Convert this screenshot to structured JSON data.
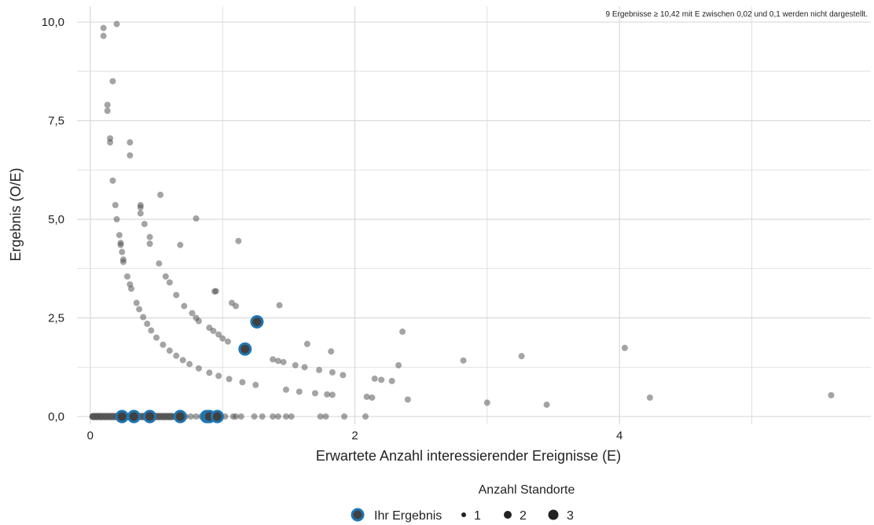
{
  "chart_data": {
    "type": "scatter",
    "title": "",
    "xlabel": "Erwartete Anzahl interessierender Ereignisse (E)",
    "ylabel": "Ergebnis (O/E)",
    "xlim": [
      -0.1,
      5.9
    ],
    "ylim": [
      -0.2,
      10.4
    ],
    "x_ticks": [
      {
        "value": 0,
        "label": "0"
      },
      {
        "value": 2,
        "label": "2"
      },
      {
        "value": 4,
        "label": "4"
      }
    ],
    "x_minor_grid": [
      1,
      3,
      5
    ],
    "y_ticks": [
      {
        "value": 0,
        "label": "0,0"
      },
      {
        "value": 2.5,
        "label": "2,5"
      },
      {
        "value": 5,
        "label": "5,0"
      },
      {
        "value": 7.5,
        "label": "7,5"
      },
      {
        "value": 10,
        "label": "10,0"
      }
    ],
    "y_minor_grid": [
      1.25,
      3.75,
      6.25,
      8.75
    ],
    "grid": true,
    "annotation": "9 Ergebnisse ≥ 10,42 mit E zwischen 0,02 und 0,1 werden nicht dargestellt.",
    "colors": {
      "points": "#4a4a4a",
      "highlight_fill": "#404040",
      "highlight_ring": "#1f77b4",
      "grid": "#d9d9d9"
    },
    "series": [
      {
        "name": "Standorte",
        "points": [
          [
            0.1,
            9.85
          ],
          [
            0.2,
            9.95
          ],
          [
            0.1,
            9.65
          ],
          [
            0.17,
            8.5
          ],
          [
            0.13,
            7.9
          ],
          [
            0.13,
            7.75
          ],
          [
            0.15,
            7.05
          ],
          [
            0.15,
            6.95
          ],
          [
            0.3,
            6.95
          ],
          [
            0.3,
            6.62
          ],
          [
            0.17,
            5.98
          ],
          [
            0.53,
            5.62
          ],
          [
            0.19,
            5.36
          ],
          [
            0.38,
            5.36
          ],
          [
            0.38,
            5.3
          ],
          [
            0.38,
            5.15
          ],
          [
            0.41,
            4.88
          ],
          [
            0.8,
            5.02
          ],
          [
            0.2,
            5.0
          ],
          [
            0.22,
            4.6
          ],
          [
            0.23,
            4.4
          ],
          [
            0.23,
            4.35
          ],
          [
            0.24,
            4.17
          ],
          [
            0.25,
            3.98
          ],
          [
            0.25,
            3.92
          ],
          [
            0.45,
            4.55
          ],
          [
            0.45,
            4.38
          ],
          [
            0.68,
            4.35
          ],
          [
            1.12,
            4.45
          ],
          [
            0.52,
            3.88
          ],
          [
            0.57,
            3.55
          ],
          [
            0.6,
            3.4
          ],
          [
            0.65,
            3.08
          ],
          [
            0.71,
            2.8
          ],
          [
            0.77,
            2.62
          ],
          [
            0.8,
            2.5
          ],
          [
            0.82,
            2.42
          ],
          [
            0.9,
            2.25
          ],
          [
            0.93,
            2.17
          ],
          [
            0.97,
            2.08
          ],
          [
            1.0,
            1.98
          ],
          [
            1.04,
            1.9
          ],
          [
            1.1,
            2.8
          ],
          [
            1.07,
            2.88
          ],
          [
            0.95,
            3.18
          ],
          [
            0.94,
            3.17
          ],
          [
            1.43,
            2.82
          ],
          [
            1.38,
            1.45
          ],
          [
            1.42,
            1.41
          ],
          [
            1.46,
            1.38
          ],
          [
            1.55,
            1.3
          ],
          [
            1.62,
            1.25
          ],
          [
            1.64,
            1.84
          ],
          [
            1.73,
            1.18
          ],
          [
            1.83,
            1.12
          ],
          [
            1.91,
            1.05
          ],
          [
            1.82,
            1.65
          ],
          [
            2.09,
            0.5
          ],
          [
            2.13,
            0.48
          ],
          [
            2.15,
            0.96
          ],
          [
            2.2,
            0.93
          ],
          [
            2.28,
            0.9
          ],
          [
            2.33,
            1.3
          ],
          [
            2.36,
            2.15
          ],
          [
            2.4,
            0.43
          ],
          [
            2.82,
            1.42
          ],
          [
            3.0,
            0.35
          ],
          [
            3.26,
            1.53
          ],
          [
            3.45,
            0.3
          ],
          [
            4.04,
            1.74
          ],
          [
            4.23,
            0.48
          ],
          [
            5.6,
            0.54
          ],
          [
            0.28,
            3.55
          ],
          [
            0.3,
            3.35
          ],
          [
            0.31,
            3.24
          ],
          [
            0.35,
            2.88
          ],
          [
            0.37,
            2.72
          ],
          [
            0.4,
            2.52
          ],
          [
            0.43,
            2.35
          ],
          [
            0.46,
            2.18
          ],
          [
            0.5,
            2.0
          ],
          [
            0.55,
            1.82
          ],
          [
            0.6,
            1.67
          ],
          [
            0.65,
            1.54
          ],
          [
            0.7,
            1.43
          ],
          [
            0.75,
            1.33
          ],
          [
            0.82,
            1.22
          ],
          [
            0.9,
            1.11
          ],
          [
            0.97,
            1.03
          ],
          [
            1.05,
            0.95
          ],
          [
            1.15,
            0.87
          ],
          [
            1.25,
            0.8
          ],
          [
            1.48,
            0.68
          ],
          [
            1.58,
            0.63
          ],
          [
            1.7,
            0.59
          ],
          [
            1.79,
            0.56
          ],
          [
            1.83,
            0.55
          ],
          [
            0.02,
            0
          ],
          [
            0.05,
            0
          ],
          [
            0.08,
            0
          ],
          [
            0.12,
            0
          ],
          [
            0.16,
            0
          ],
          [
            0.2,
            0
          ],
          [
            0.28,
            0
          ],
          [
            0.36,
            0
          ],
          [
            0.4,
            0
          ],
          [
            0.48,
            0
          ],
          [
            0.52,
            0
          ],
          [
            0.56,
            0
          ],
          [
            0.6,
            0
          ],
          [
            0.64,
            0
          ],
          [
            0.7,
            0
          ],
          [
            0.72,
            0
          ],
          [
            0.76,
            0
          ],
          [
            0.8,
            0
          ],
          [
            0.84,
            0
          ],
          [
            0.98,
            0
          ],
          [
            1.02,
            0
          ],
          [
            1.08,
            0
          ],
          [
            1.1,
            0
          ],
          [
            1.14,
            0
          ],
          [
            1.24,
            0
          ],
          [
            1.3,
            0
          ],
          [
            1.38,
            0
          ],
          [
            1.42,
            0
          ],
          [
            1.48,
            0
          ],
          [
            1.52,
            0
          ],
          [
            1.74,
            0
          ],
          [
            1.78,
            0
          ],
          [
            1.92,
            0
          ],
          [
            2.08,
            0
          ]
        ]
      },
      {
        "name": "Ihr Ergebnis",
        "points": [
          [
            0.24,
            0
          ],
          [
            0.33,
            0
          ],
          [
            0.45,
            0
          ],
          [
            0.68,
            0
          ],
          [
            0.88,
            0
          ],
          [
            0.9,
            0
          ],
          [
            0.96,
            0
          ],
          [
            1.17,
            1.71
          ],
          [
            1.26,
            2.4
          ]
        ]
      }
    ],
    "legend": {
      "title": "Anzahl Standorte",
      "highlight_label": "Ihr Ergebnis",
      "size_entries": [
        "1",
        "2",
        "3"
      ],
      "position": "bottom-center"
    }
  }
}
